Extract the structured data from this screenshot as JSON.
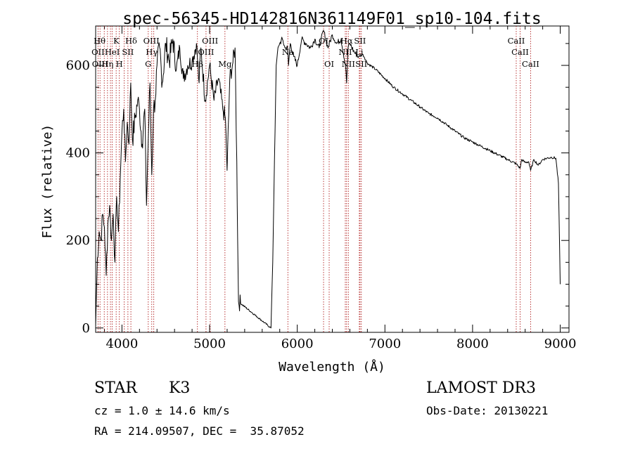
{
  "chart_data": {
    "type": "line",
    "title": "spec-56345-HD142816N361149F01_sp10-104.fits",
    "xlabel": "Wavelength (Å)",
    "ylabel": "Flux (relative)",
    "xlim": [
      3700,
      9100
    ],
    "ylim": [
      -10,
      690
    ],
    "x_major_ticks": [
      4000,
      5000,
      6000,
      7000,
      8000,
      9000
    ],
    "y_major_ticks": [
      0,
      200,
      400,
      600
    ],
    "series": [
      {
        "color": "#000000",
        "x": [
          3700,
          3720,
          3740,
          3760,
          3780,
          3800,
          3820,
          3840,
          3860,
          3880,
          3900,
          3920,
          3940,
          3960,
          3980,
          4000,
          4020,
          4040,
          4060,
          4080,
          4100,
          4120,
          4150,
          4180,
          4200,
          4230,
          4260,
          4280,
          4300,
          4320,
          4340,
          4360,
          4380,
          4400,
          4430,
          4460,
          4500,
          4540,
          4580,
          4620,
          4660,
          4700,
          4750,
          4800,
          4850,
          4880,
          4900,
          4950,
          5000,
          5050,
          5100,
          5150,
          5180,
          5200,
          5230,
          5260,
          5290,
          5310,
          5320,
          5330,
          5700,
          5720,
          5740,
          5760,
          5780,
          5800,
          5830,
          5860,
          5890,
          5900,
          5920,
          5960,
          6000,
          6050,
          6100,
          6150,
          6200,
          6250,
          6300,
          6350,
          6400,
          6450,
          6500,
          6550,
          6563,
          6580,
          6600,
          6650,
          6700,
          6750,
          6800,
          6900,
          7000,
          7100,
          7200,
          7300,
          7400,
          7500,
          7600,
          7700,
          7800,
          7900,
          8000,
          8100,
          8200,
          8300,
          8400,
          8498,
          8520,
          8542,
          8560,
          8600,
          8640,
          8662,
          8700,
          8750,
          8800,
          8850,
          8900,
          8950,
          8980,
          9000
        ],
        "y": [
          5,
          160,
          220,
          200,
          260,
          230,
          120,
          240,
          280,
          200,
          260,
          150,
          300,
          220,
          340,
          450,
          500,
          380,
          470,
          420,
          560,
          430,
          480,
          520,
          500,
          420,
          500,
          280,
          430,
          560,
          350,
          500,
          520,
          600,
          640,
          560,
          650,
          610,
          660,
          590,
          640,
          570,
          600,
          610,
          650,
          560,
          640,
          520,
          600,
          520,
          570,
          500,
          480,
          360,
          570,
          600,
          640,
          380,
          200,
          60,
          0,
          150,
          380,
          600,
          640,
          650,
          660,
          640,
          640,
          600,
          650,
          620,
          600,
          660,
          650,
          640,
          660,
          640,
          680,
          640,
          670,
          650,
          660,
          600,
          560,
          640,
          650,
          630,
          620,
          625,
          605,
          590,
          570,
          550,
          535,
          520,
          505,
          490,
          480,
          465,
          450,
          435,
          425,
          415,
          405,
          395,
          385,
          375,
          370,
          365,
          385,
          378,
          380,
          360,
          385,
          372,
          385,
          388,
          390,
          388,
          330,
          100
        ]
      }
    ],
    "lines": {
      "top_row1": [
        "Hθ",
        "K",
        "Hδ",
        "OIII",
        "OIII",
        "OI",
        "Hα",
        "SII",
        "CaII"
      ],
      "top_row2": [
        "OII",
        "HeI",
        "SII",
        "Hγ",
        "OIII",
        "Na",
        "NII",
        "Li",
        "CaII"
      ],
      "top_row3": [
        "OIII",
        "Hη",
        "H",
        "G",
        "Hβ",
        "Mg",
        "OI",
        "NII",
        "SII",
        "CaII"
      ],
      "x": [
        3727,
        3750,
        3798,
        3835,
        3869,
        3889,
        3934,
        3970,
        4026,
        4068,
        4102,
        4300,
        4340,
        4363,
        4861,
        4959,
        5007,
        5175,
        5893,
        6300,
        6364,
        6548,
        6563,
        6583,
        6708,
        6716,
        6731,
        8498,
        8542,
        8662
      ]
    },
    "legend": "none",
    "grid": false
  },
  "footer": {
    "object_type": "STAR",
    "subclass": "K3",
    "survey": "LAMOST DR3",
    "cz": "cz = 1.0 ± 14.6 km/s",
    "obs_date": "Obs-Date: 20130221",
    "coords": "RA = 214.09507, DEC =  35.87052"
  }
}
